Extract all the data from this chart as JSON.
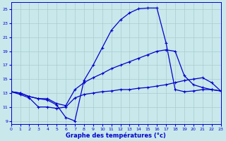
{
  "bg_color": "#c8e8ec",
  "grid_color": "#aacccc",
  "line_color": "#0000cc",
  "xlabel": "Graphe des températures (°c)",
  "xlim": [
    0,
    23
  ],
  "ylim": [
    8.5,
    26.0
  ],
  "yticks": [
    9,
    11,
    13,
    15,
    17,
    19,
    21,
    23,
    25
  ],
  "xticks": [
    0,
    1,
    2,
    3,
    4,
    5,
    6,
    7,
    8,
    9,
    10,
    11,
    12,
    13,
    14,
    15,
    16,
    17,
    18,
    19,
    20,
    21,
    22,
    23
  ],
  "curves": [
    {
      "x": [
        0,
        1,
        2,
        3,
        4,
        5,
        6,
        7,
        8,
        9,
        10,
        11,
        12,
        13,
        14,
        15,
        16,
        17,
        18,
        19,
        20,
        21,
        22,
        23
      ],
      "y": [
        13.2,
        13.0,
        12.5,
        12.2,
        12.0,
        11.3,
        9.5,
        9.0,
        14.8,
        17.0,
        19.5,
        22.0,
        23.5,
        24.5,
        25.1,
        25.2,
        25.2,
        20.2,
        13.5,
        13.2,
        13.3,
        13.5,
        13.5,
        13.3
      ]
    },
    {
      "x": [
        0,
        1,
        2,
        3,
        4,
        5,
        6,
        7,
        8,
        9,
        10,
        11,
        12,
        13,
        14,
        15,
        16,
        17,
        18,
        19,
        20,
        21,
        22,
        23
      ],
      "y": [
        13.2,
        13.0,
        12.5,
        12.2,
        12.2,
        11.5,
        11.2,
        13.5,
        14.5,
        15.2,
        15.8,
        16.5,
        17.0,
        17.5,
        18.0,
        18.5,
        19.0,
        19.2,
        19.0,
        15.5,
        14.2,
        13.8,
        13.5,
        13.3
      ]
    },
    {
      "x": [
        0,
        1,
        2,
        3,
        4,
        5,
        6,
        7,
        8,
        9,
        10,
        11,
        12,
        13,
        14,
        15,
        16,
        17,
        18,
        19,
        20,
        21,
        22,
        23
      ],
      "y": [
        13.2,
        12.8,
        12.3,
        11.0,
        11.0,
        10.8,
        11.0,
        12.3,
        12.8,
        13.0,
        13.2,
        13.3,
        13.5,
        13.5,
        13.7,
        13.8,
        14.0,
        14.2,
        14.5,
        14.8,
        15.0,
        15.2,
        14.5,
        13.3
      ]
    }
  ]
}
